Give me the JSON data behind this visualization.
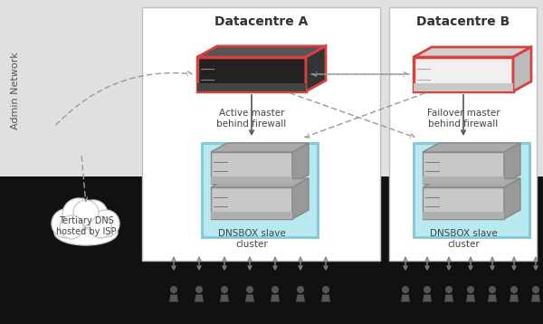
{
  "bg_gray_color": "#e0e0e0",
  "bg_black_color": "#111111",
  "dc_a_label": "Datacentre A",
  "dc_b_label": "Datacentre B",
  "admin_network_label": "Admin Network",
  "active_master_label": "Active master\nbehind firewall",
  "failover_master_label": "Failover master\nbehind firewall",
  "slave_a_label": "DNSBOX slave\ncluster",
  "slave_b_label": "DNSBOX slave\ncluster",
  "tertiary_dns_label": "Tertiary DNS\nhosted by ISP",
  "arrow_color": "#999999",
  "text_color": "#555555",
  "fw_dark_face": "#222222",
  "fw_light_face": "#f0f0f0",
  "fw_top_dark": "#555555",
  "fw_top_light": "#d0d0d0",
  "fw_side_dark": "#333333",
  "fw_side_light": "#bbbbbb",
  "fw_border": "#d94040",
  "teal_fill": "#b8e8f0",
  "teal_border": "#80c8d8",
  "server_face": "#c8c8c8",
  "server_top": "#aaaaaa",
  "server_side": "#999999"
}
